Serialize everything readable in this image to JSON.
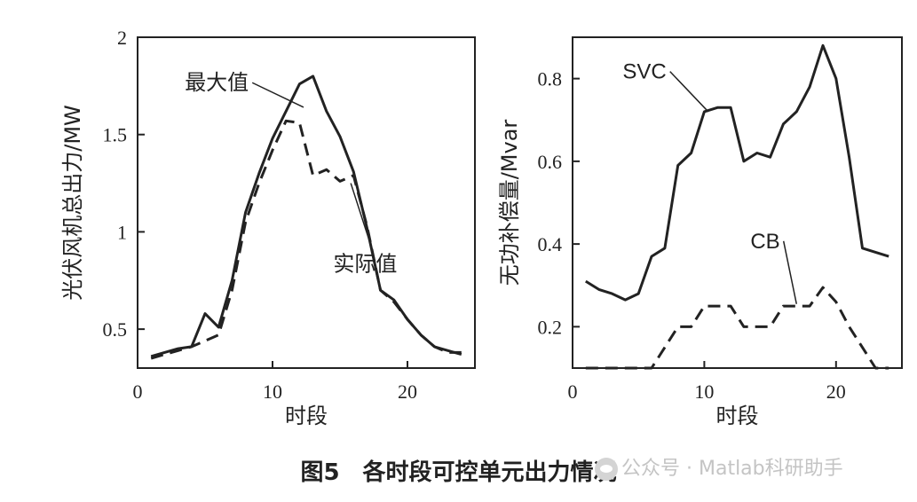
{
  "figure_caption": "图5　各时段可控单元出力情况",
  "watermark": "公众号 · Matlab科研助手",
  "chart_data": [
    {
      "type": "line",
      "xlabel": "时段",
      "ylabel": "光伏风机总出力/MW",
      "xlim": [
        0,
        25
      ],
      "ylim": [
        0.3,
        2.0
      ],
      "xticks": [
        0,
        10,
        20
      ],
      "yticks": [
        0.5,
        1,
        1.5,
        2
      ],
      "ytick_labels": [
        "0.5",
        "1",
        "1.5",
        "2"
      ],
      "grid": false,
      "series": [
        {
          "name": "最大值",
          "style": "solid",
          "x": [
            1,
            2,
            3,
            4,
            5,
            6,
            7,
            8,
            9,
            10,
            11,
            12,
            13,
            14,
            15,
            16,
            17,
            18,
            19,
            20,
            21,
            22,
            23,
            24
          ],
          "y": [
            0.36,
            0.38,
            0.4,
            0.41,
            0.58,
            0.51,
            0.75,
            1.1,
            1.3,
            1.48,
            1.62,
            1.76,
            1.8,
            1.62,
            1.49,
            1.31,
            1.02,
            0.7,
            0.65,
            0.55,
            0.47,
            0.41,
            0.39,
            0.37
          ]
        },
        {
          "name": "实际值",
          "style": "dashed",
          "x": [
            1,
            2,
            3,
            4,
            5,
            6,
            7,
            8,
            9,
            10,
            11,
            12,
            13,
            14,
            15,
            16,
            17,
            18,
            19,
            20,
            21,
            22,
            23,
            24
          ],
          "y": [
            0.35,
            0.37,
            0.39,
            0.41,
            0.44,
            0.47,
            0.7,
            1.05,
            1.25,
            1.42,
            1.57,
            1.56,
            1.29,
            1.32,
            1.26,
            1.29,
            1.03,
            0.7,
            0.64,
            0.55,
            0.47,
            0.41,
            0.38,
            0.38
          ]
        }
      ],
      "annotations": [
        {
          "text": "最大值",
          "x": 3.5,
          "y": 1.73,
          "arrow_to": [
            12.3,
            1.64
          ]
        },
        {
          "text": "实际值",
          "x": 14.5,
          "y": 0.8,
          "arrow_to": [
            15.8,
            1.25
          ]
        }
      ]
    },
    {
      "type": "line",
      "xlabel": "时段",
      "ylabel": "无功补偿量/Mvar",
      "xlim": [
        0,
        25
      ],
      "ylim": [
        0.1,
        0.9
      ],
      "xticks": [
        0,
        10,
        20
      ],
      "yticks": [
        0.2,
        0.4,
        0.6,
        0.8
      ],
      "ytick_labels": [
        "0.2",
        "0.4",
        "0.6",
        "0.8"
      ],
      "grid": false,
      "series": [
        {
          "name": "SVC",
          "style": "solid",
          "x": [
            1,
            2,
            3,
            4,
            5,
            6,
            7,
            8,
            9,
            10,
            11,
            12,
            13,
            14,
            15,
            16,
            17,
            18,
            19,
            20,
            21,
            22,
            23,
            24
          ],
          "y": [
            0.31,
            0.29,
            0.28,
            0.265,
            0.28,
            0.37,
            0.39,
            0.59,
            0.62,
            0.72,
            0.73,
            0.73,
            0.6,
            0.62,
            0.61,
            0.69,
            0.72,
            0.78,
            0.88,
            0.8,
            0.61,
            0.39,
            0.38,
            0.37
          ]
        },
        {
          "name": "CB",
          "style": "dashed",
          "x": [
            1,
            2,
            3,
            4,
            5,
            6,
            7,
            8,
            9,
            10,
            11,
            12,
            13,
            14,
            15,
            16,
            17,
            18,
            19,
            20,
            21,
            22,
            23,
            24
          ],
          "y": [
            0.1,
            0.1,
            0.1,
            0.1,
            0.1,
            0.1,
            0.15,
            0.2,
            0.2,
            0.25,
            0.25,
            0.25,
            0.2,
            0.2,
            0.2,
            0.25,
            0.25,
            0.25,
            0.295,
            0.26,
            0.2,
            0.15,
            0.1,
            0.1
          ]
        }
      ],
      "annotations": [
        {
          "text": "SVC",
          "x": 3.8,
          "y": 0.8,
          "arrow_to": [
            10.3,
            0.72
          ]
        },
        {
          "text": "CB",
          "x": 13.5,
          "y": 0.39,
          "arrow_to": [
            17.0,
            0.255
          ]
        }
      ]
    }
  ]
}
